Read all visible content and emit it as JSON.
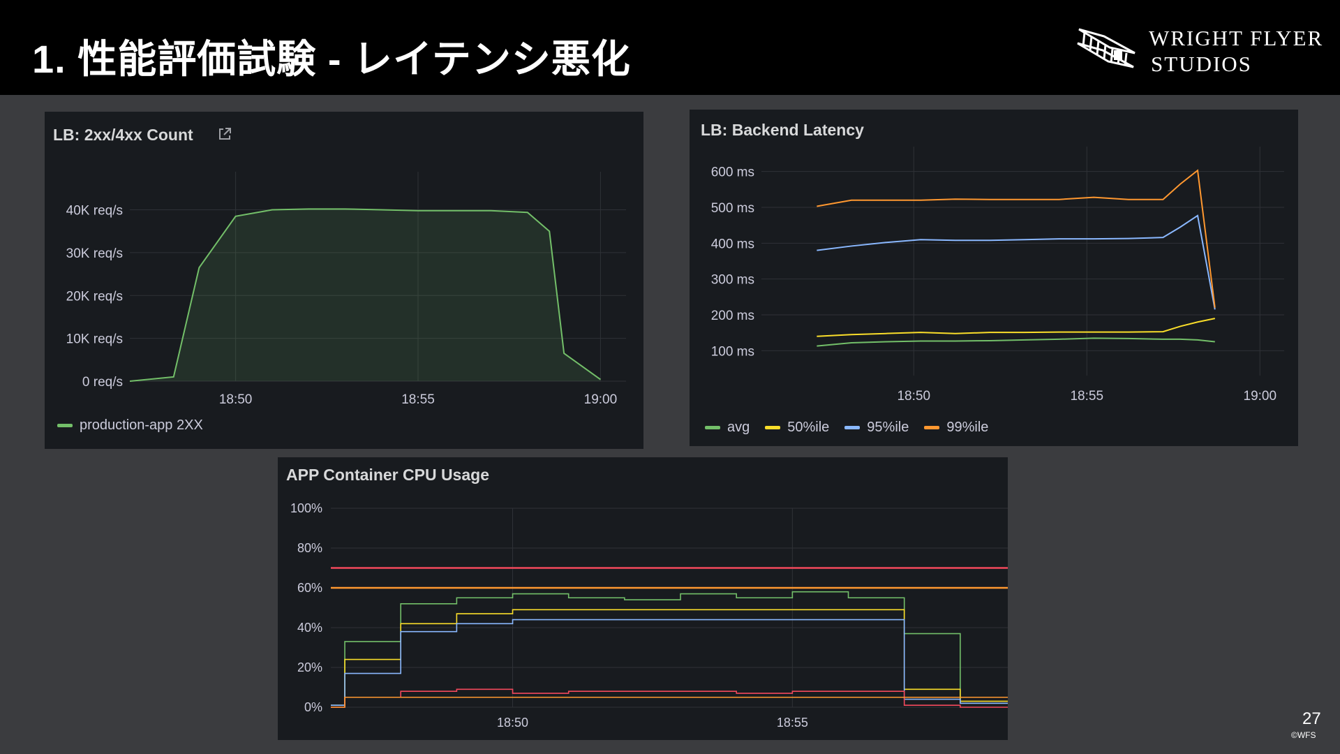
{
  "slide": {
    "title": "1.  性能評価試験 - レイテンシ悪化",
    "logo": {
      "line1": "WRIGHT FLYER",
      "line2": "STUDIOS"
    },
    "page_number": "27",
    "copyright": "©WFS"
  },
  "colors": {
    "background": "#3b3c3f",
    "topbar": "#000000",
    "panel": "#181b1f",
    "grid": "#2f3237",
    "green": "#73bf69",
    "yellow": "#fade2a",
    "blue": "#8ab8ff",
    "orange": "#ff9830",
    "red": "#f2495c"
  },
  "chart_data": [
    {
      "id": "requests",
      "title": "LB: 2xx/4xx Count",
      "type": "area",
      "x_ticks": [
        "18:50",
        "18:55",
        "19:00"
      ],
      "y_ticks": [
        "0 req/s",
        "10K req/s",
        "20K req/s",
        "30K req/s",
        "40K req/s"
      ],
      "xlim_minutes": [
        47.1,
        60.7
      ],
      "ylim": [
        0,
        44000
      ],
      "legend_position": "bottom-left",
      "series": [
        {
          "name": "production-app 2XX",
          "color": "#73bf69",
          "x_minutes": [
            47.1,
            48.3,
            49.0,
            50.0,
            51.0,
            52.0,
            53.0,
            54.0,
            55.0,
            56.0,
            57.0,
            58.0,
            58.6,
            59.0,
            60.0
          ],
          "values": [
            0,
            1000,
            26500,
            38500,
            40000,
            40200,
            40200,
            40000,
            39800,
            39800,
            39800,
            39400,
            35000,
            6500,
            400
          ]
        }
      ]
    },
    {
      "id": "latency",
      "title": "LB: Backend Latency",
      "type": "line",
      "x_ticks": [
        "18:50",
        "18:55",
        "19:00"
      ],
      "y_ticks": [
        "100 ms",
        "200 ms",
        "300 ms",
        "400 ms",
        "500 ms",
        "600 ms"
      ],
      "xlim_minutes": [
        45.6,
        60.7
      ],
      "ylim": [
        50,
        650
      ],
      "legend_position": "bottom-left",
      "series": [
        {
          "name": "avg",
          "color": "#73bf69",
          "x_minutes": [
            47.2,
            48.2,
            49.2,
            50.2,
            51.2,
            52.2,
            53.2,
            54.2,
            55.2,
            56.2,
            57.2,
            57.7,
            58.2,
            58.7
          ],
          "values": [
            113,
            122,
            125,
            127,
            127,
            128,
            130,
            132,
            135,
            134,
            132,
            132,
            130,
            125
          ]
        },
        {
          "name": "50%ile",
          "color": "#fade2a",
          "x_minutes": [
            47.2,
            48.2,
            49.2,
            50.2,
            51.2,
            52.2,
            53.2,
            54.2,
            55.2,
            56.2,
            57.2,
            57.7,
            58.2,
            58.7
          ],
          "values": [
            140,
            145,
            148,
            151,
            148,
            151,
            151,
            152,
            152,
            152,
            153,
            168,
            180,
            190
          ]
        },
        {
          "name": "95%ile",
          "color": "#8ab8ff",
          "x_minutes": [
            47.2,
            48.2,
            49.2,
            50.2,
            51.2,
            52.2,
            53.2,
            54.2,
            55.2,
            56.2,
            57.2,
            57.7,
            58.2,
            58.7
          ],
          "values": [
            380,
            392,
            402,
            410,
            408,
            408,
            410,
            412,
            412,
            413,
            416,
            445,
            477,
            215
          ]
        },
        {
          "name": "99%ile",
          "color": "#ff9830",
          "x_minutes": [
            47.2,
            48.2,
            49.2,
            50.2,
            51.2,
            52.2,
            53.2,
            54.2,
            55.2,
            56.2,
            57.2,
            57.7,
            58.2,
            58.7
          ],
          "values": [
            503,
            520,
            520,
            520,
            523,
            522,
            522,
            522,
            528,
            522,
            522,
            565,
            603,
            220
          ]
        }
      ]
    },
    {
      "id": "cpu",
      "title": "APP Container CPU Usage",
      "type": "line",
      "step": true,
      "x_ticks": [
        "18:50",
        "18:55"
      ],
      "y_ticks": [
        "0%",
        "20%",
        "40%",
        "60%",
        "80%",
        "100%"
      ],
      "xlim_minutes": [
        46.75,
        58.85
      ],
      "ylim": [
        0,
        100
      ],
      "thresholds": [
        {
          "value": 70,
          "color": "#f2495c"
        },
        {
          "value": 60,
          "color": "#ff9830"
        }
      ],
      "step_x_minutes": [
        46.75,
        47.0,
        48.0,
        49.0,
        50.0,
        51.0,
        52.0,
        53.0,
        54.0,
        55.0,
        56.0,
        57.0,
        58.0
      ],
      "series": [
        {
          "color": "#73bf69",
          "values": [
            1,
            33,
            52,
            55,
            57,
            55,
            54,
            57,
            55,
            58,
            55,
            37,
            2
          ]
        },
        {
          "color": "#fade2a",
          "values": [
            1,
            24,
            42,
            47,
            49,
            49,
            49,
            49,
            49,
            49,
            49,
            9,
            3
          ]
        },
        {
          "color": "#8ab8ff",
          "values": [
            1,
            17,
            38,
            42,
            44,
            44,
            44,
            44,
            44,
            44,
            44,
            4,
            2
          ]
        },
        {
          "color": "#f2495c",
          "values": [
            0,
            5,
            8,
            9,
            7,
            8,
            8,
            8,
            7,
            8,
            8,
            1,
            0
          ]
        },
        {
          "color": "#ff9830",
          "values": [
            0,
            5,
            5,
            5,
            5,
            5,
            5,
            5,
            5,
            5,
            5,
            5,
            5
          ]
        }
      ]
    }
  ]
}
